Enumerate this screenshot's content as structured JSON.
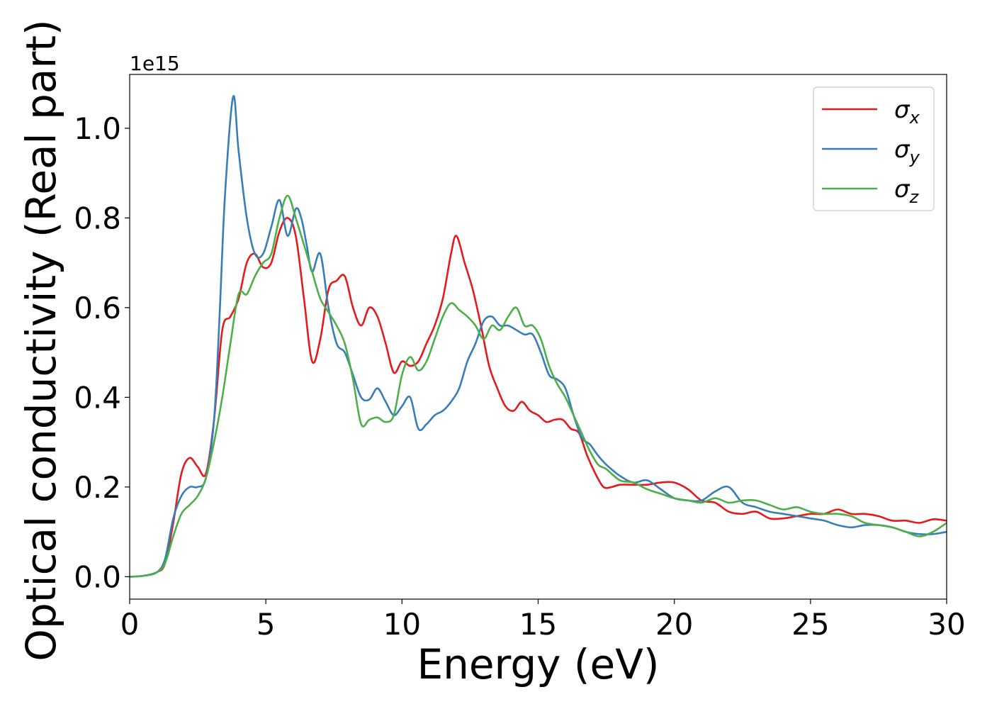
{
  "chart_data": {
    "type": "line",
    "xlabel": "Energy (eV)",
    "ylabel": "Optical conductivity (Real part)",
    "y_offset_text": "1e15",
    "xlim": [
      0,
      30
    ],
    "ylim": [
      -0.05,
      1.12
    ],
    "xticks": [
      0,
      5,
      10,
      15,
      20,
      25,
      30
    ],
    "xtick_labels": [
      "0",
      "5",
      "10",
      "15",
      "20",
      "25",
      "30"
    ],
    "yticks": [
      0.0,
      0.2,
      0.4,
      0.6,
      0.8,
      1.0
    ],
    "ytick_labels": [
      "0.0",
      "0.2",
      "0.4",
      "0.6",
      "0.8",
      "1.0"
    ],
    "grid": false,
    "legend_position": "top-right",
    "series": [
      {
        "name": "σx",
        "symbol": "σ",
        "subscript": "x",
        "color": "#e41a1c",
        "x": [
          0,
          0.5,
          1.0,
          1.3,
          1.6,
          1.9,
          2.2,
          2.5,
          2.8,
          3.1,
          3.4,
          3.7,
          4.0,
          4.3,
          4.6,
          4.9,
          5.2,
          5.5,
          5.8,
          6.1,
          6.4,
          6.7,
          7.0,
          7.3,
          7.6,
          7.9,
          8.2,
          8.5,
          8.8,
          9.1,
          9.4,
          9.7,
          10.0,
          10.3,
          10.6,
          10.9,
          11.2,
          11.5,
          11.8,
          12.0,
          12.3,
          12.6,
          12.9,
          13.2,
          13.5,
          13.8,
          14.1,
          14.4,
          14.7,
          15.0,
          15.3,
          15.6,
          15.9,
          16.2,
          16.5,
          16.8,
          17.1,
          17.4,
          17.7,
          18.0,
          18.5,
          19.0,
          19.5,
          20.0,
          20.5,
          21.0,
          21.5,
          22.0,
          22.5,
          23.0,
          23.5,
          24.0,
          24.5,
          25.0,
          25.5,
          26.0,
          26.5,
          27.0,
          27.5,
          28.0,
          28.5,
          29.0,
          29.5,
          30.0
        ],
        "values": [
          0.0,
          0.002,
          0.01,
          0.03,
          0.12,
          0.23,
          0.265,
          0.245,
          0.23,
          0.35,
          0.55,
          0.58,
          0.62,
          0.7,
          0.72,
          0.69,
          0.7,
          0.77,
          0.8,
          0.76,
          0.62,
          0.48,
          0.53,
          0.64,
          0.66,
          0.67,
          0.6,
          0.56,
          0.6,
          0.58,
          0.52,
          0.455,
          0.48,
          0.47,
          0.48,
          0.52,
          0.56,
          0.62,
          0.72,
          0.76,
          0.7,
          0.64,
          0.56,
          0.47,
          0.42,
          0.38,
          0.37,
          0.39,
          0.37,
          0.36,
          0.345,
          0.35,
          0.35,
          0.33,
          0.32,
          0.27,
          0.23,
          0.2,
          0.2,
          0.205,
          0.205,
          0.205,
          0.21,
          0.21,
          0.195,
          0.17,
          0.165,
          0.145,
          0.14,
          0.145,
          0.13,
          0.13,
          0.135,
          0.14,
          0.14,
          0.15,
          0.14,
          0.14,
          0.135,
          0.125,
          0.125,
          0.12,
          0.128,
          0.125
        ]
      },
      {
        "name": "σy",
        "symbol": "σ",
        "subscript": "y",
        "color": "#377eb8",
        "x": [
          0,
          0.5,
          1.0,
          1.3,
          1.6,
          1.9,
          2.2,
          2.5,
          2.8,
          3.1,
          3.3,
          3.5,
          3.8,
          4.0,
          4.3,
          4.6,
          4.9,
          5.2,
          5.5,
          5.8,
          6.1,
          6.3,
          6.5,
          6.7,
          7.0,
          7.3,
          7.6,
          7.9,
          8.2,
          8.5,
          8.8,
          9.1,
          9.4,
          9.7,
          10.0,
          10.3,
          10.6,
          10.9,
          11.2,
          11.5,
          11.8,
          12.1,
          12.4,
          12.7,
          13.0,
          13.3,
          13.6,
          13.9,
          14.2,
          14.5,
          14.8,
          15.1,
          15.4,
          15.7,
          16.0,
          16.3,
          16.6,
          16.9,
          17.2,
          17.5,
          18.0,
          18.5,
          19.0,
          19.5,
          20.0,
          20.5,
          21.0,
          21.5,
          22.0,
          22.5,
          23.0,
          23.5,
          24.0,
          24.5,
          25.0,
          25.5,
          26.0,
          26.5,
          27.0,
          27.5,
          28.0,
          28.5,
          29.0,
          29.5,
          30.0
        ],
        "values": [
          0.0,
          0.002,
          0.01,
          0.04,
          0.13,
          0.18,
          0.2,
          0.2,
          0.22,
          0.35,
          0.58,
          0.85,
          1.07,
          0.95,
          0.8,
          0.72,
          0.72,
          0.78,
          0.84,
          0.76,
          0.82,
          0.8,
          0.74,
          0.68,
          0.72,
          0.6,
          0.52,
          0.5,
          0.45,
          0.4,
          0.395,
          0.42,
          0.39,
          0.36,
          0.38,
          0.4,
          0.33,
          0.34,
          0.36,
          0.37,
          0.39,
          0.42,
          0.48,
          0.52,
          0.57,
          0.58,
          0.56,
          0.56,
          0.55,
          0.54,
          0.54,
          0.5,
          0.45,
          0.44,
          0.42,
          0.36,
          0.31,
          0.295,
          0.27,
          0.25,
          0.225,
          0.21,
          0.215,
          0.195,
          0.175,
          0.17,
          0.17,
          0.19,
          0.2,
          0.165,
          0.155,
          0.145,
          0.14,
          0.135,
          0.13,
          0.125,
          0.115,
          0.11,
          0.115,
          0.115,
          0.11,
          0.1,
          0.095,
          0.095,
          0.1
        ]
      },
      {
        "name": "σz",
        "symbol": "σ",
        "subscript": "z",
        "color": "#4daf4a",
        "x": [
          0,
          0.5,
          1.0,
          1.3,
          1.6,
          1.9,
          2.2,
          2.5,
          2.8,
          3.1,
          3.4,
          3.7,
          4.0,
          4.3,
          4.6,
          4.9,
          5.2,
          5.5,
          5.8,
          6.1,
          6.4,
          6.7,
          7.0,
          7.3,
          7.6,
          7.9,
          8.2,
          8.5,
          8.8,
          9.1,
          9.4,
          9.7,
          10.0,
          10.3,
          10.6,
          10.9,
          11.2,
          11.5,
          11.8,
          12.1,
          12.4,
          12.7,
          13.0,
          13.3,
          13.6,
          13.9,
          14.2,
          14.5,
          14.8,
          15.1,
          15.4,
          15.7,
          16.0,
          16.3,
          16.6,
          16.9,
          17.2,
          17.5,
          18.0,
          18.5,
          19.0,
          19.5,
          20.0,
          20.5,
          21.0,
          21.5,
          22.0,
          22.5,
          23.0,
          23.5,
          24.0,
          24.5,
          25.0,
          25.5,
          26.0,
          26.5,
          27.0,
          27.5,
          28.0,
          28.5,
          29.0,
          29.5,
          30.0
        ],
        "values": [
          0.0,
          0.002,
          0.01,
          0.03,
          0.09,
          0.14,
          0.16,
          0.18,
          0.22,
          0.3,
          0.4,
          0.52,
          0.63,
          0.63,
          0.67,
          0.7,
          0.72,
          0.8,
          0.85,
          0.8,
          0.74,
          0.68,
          0.62,
          0.59,
          0.56,
          0.52,
          0.44,
          0.34,
          0.35,
          0.355,
          0.345,
          0.36,
          0.45,
          0.49,
          0.46,
          0.48,
          0.53,
          0.58,
          0.61,
          0.595,
          0.58,
          0.56,
          0.53,
          0.56,
          0.55,
          0.58,
          0.6,
          0.56,
          0.56,
          0.53,
          0.47,
          0.43,
          0.4,
          0.36,
          0.32,
          0.28,
          0.25,
          0.24,
          0.215,
          0.21,
          0.195,
          0.185,
          0.175,
          0.17,
          0.165,
          0.175,
          0.165,
          0.17,
          0.17,
          0.16,
          0.15,
          0.155,
          0.145,
          0.14,
          0.14,
          0.135,
          0.12,
          0.115,
          0.11,
          0.1,
          0.09,
          0.1,
          0.12
        ]
      }
    ]
  }
}
